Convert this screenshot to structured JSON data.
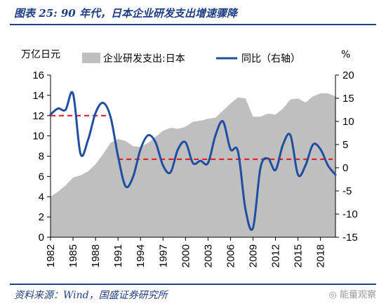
{
  "header": {
    "title": "图表 25:  90 年代，日本企业研发支出增速骤降"
  },
  "footer": {
    "source": "资料来源：Wind，国盛证券研究所",
    "watermark": "◎ 能量观察"
  },
  "colors": {
    "area": "#bfbfbf",
    "line": "#1f4ea3",
    "reference": "#e8141b",
    "rule": "#1f3f86"
  },
  "chart_data": {
    "type": "area+line",
    "left_axis_unit": "万亿日元",
    "right_axis_unit": "%",
    "left_ylim": [
      0,
      16
    ],
    "left_ticks": [
      0,
      2,
      4,
      6,
      8,
      10,
      12,
      14,
      16
    ],
    "right_ylim": [
      -15,
      20
    ],
    "right_ticks": [
      -15,
      -10,
      -5,
      0,
      5,
      10,
      15,
      20
    ],
    "x_tick_labels": [
      "1982",
      "1985",
      "1988",
      "1991",
      "1994",
      "1997",
      "2000",
      "2003",
      "2006",
      "2009",
      "2012",
      "2015",
      "2018"
    ],
    "xlim": [
      1982,
      2020
    ],
    "legend": [
      {
        "label": "企业研发支出:日本",
        "kind": "area"
      },
      {
        "label": "同比（右轴）",
        "kind": "line"
      }
    ],
    "series": [
      {
        "name": "企业研发支出:日本",
        "axis": "left",
        "x": [
          1982,
          1983,
          1984,
          1985,
          1986,
          1987,
          1988,
          1989,
          1990,
          1991,
          1992,
          1993,
          1994,
          1995,
          1996,
          1997,
          1998,
          1999,
          2000,
          2001,
          2002,
          2003,
          2004,
          2005,
          2006,
          2007,
          2008,
          2009,
          2010,
          2011,
          2012,
          2013,
          2014,
          2015,
          2016,
          2017,
          2018,
          2019,
          2020
        ],
        "values": [
          4.0,
          4.5,
          5.1,
          5.9,
          6.1,
          6.5,
          7.2,
          8.2,
          9.3,
          9.7,
          9.5,
          9.0,
          8.9,
          9.3,
          9.9,
          10.5,
          10.8,
          10.7,
          10.9,
          11.4,
          11.5,
          11.7,
          11.8,
          12.5,
          13.2,
          13.8,
          13.7,
          11.9,
          11.9,
          12.2,
          12.1,
          12.7,
          13.6,
          13.7,
          13.3,
          13.9,
          14.2,
          14.2,
          13.9
        ]
      },
      {
        "name": "同比（右轴）",
        "axis": "right",
        "x": [
          1982,
          1983,
          1984,
          1985,
          1986,
          1987,
          1988,
          1989,
          1990,
          1991,
          1992,
          1993,
          1994,
          1995,
          1996,
          1997,
          1998,
          1999,
          2000,
          2001,
          2002,
          2003,
          2004,
          2005,
          2006,
          2007,
          2008,
          2009,
          2010,
          2011,
          2012,
          2013,
          2014,
          2015,
          2016,
          2017,
          2018,
          2019,
          2020
        ],
        "values": [
          11.5,
          12.8,
          12.5,
          16.0,
          3.0,
          6.0,
          11.8,
          14.0,
          11.0,
          2.5,
          -4.0,
          -2.0,
          4.0,
          7.0,
          5.5,
          0.5,
          -1.0,
          4.0,
          5.5,
          1.0,
          1.5,
          1.0,
          7.0,
          10.0,
          4.0,
          3.5,
          -9.0,
          -13.0,
          0.0,
          2.0,
          -0.5,
          5.0,
          7.0,
          -1.5,
          0.5,
          5.0,
          4.0,
          0.5,
          -1.5
        ]
      }
    ],
    "reference_lines": [
      {
        "axis": "left",
        "value": 12.0,
        "x_range": [
          1982,
          1990
        ]
      },
      {
        "axis": "left",
        "value": 7.7,
        "x_range": [
          1991,
          2020
        ]
      }
    ]
  }
}
